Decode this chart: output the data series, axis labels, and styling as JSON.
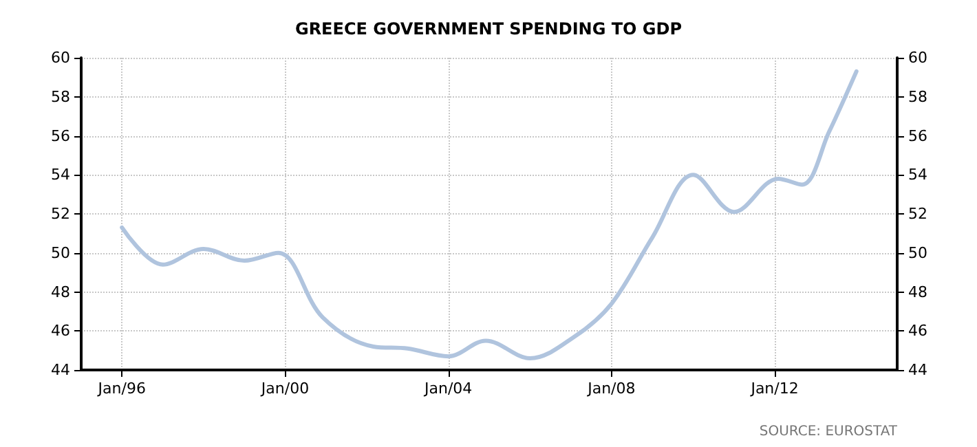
{
  "chart_data": {
    "type": "line",
    "title": "GREECE GOVERNMENT SPENDING TO GDP",
    "x": [
      "1996-01",
      "1997-01",
      "1998-01",
      "1999-01",
      "1999-11",
      "2000-12",
      "2002-03",
      "2003-01",
      "2004-01",
      "2004-12",
      "2006-01",
      "2007-02",
      "2008-01",
      "2009-01",
      "2010-01",
      "2011-01",
      "2012-02",
      "2012-09",
      "2013-05",
      "2014-01"
    ],
    "series": [
      {
        "color": "#b0c4de",
        "values": [
          51.3,
          49.4,
          50.2,
          49.6,
          50.0,
          46.7,
          45.2,
          45.1,
          44.7,
          45.5,
          44.6,
          45.7,
          47.4,
          50.8,
          54.0,
          52.1,
          53.8,
          53.5,
          56.2,
          59.3
        ]
      }
    ],
    "xlim": [
      "1995-01",
      "2015-01"
    ],
    "xticks": [
      {
        "value": "1996-01",
        "label": "Jan/96"
      },
      {
        "value": "2000-01",
        "label": "Jan/00"
      },
      {
        "value": "2004-01",
        "label": "Jan/04"
      },
      {
        "value": "2008-01",
        "label": "Jan/08"
      },
      {
        "value": "2012-01",
        "label": "Jan/12"
      }
    ],
    "ylim": [
      44,
      60
    ],
    "yticks": [
      44,
      46,
      48,
      50,
      52,
      54,
      56,
      58,
      60
    ],
    "y2lim": [
      44,
      60
    ],
    "y2ticks": [
      44,
      46,
      48,
      50,
      52,
      54,
      56,
      58,
      60
    ],
    "grid": true,
    "marker": "none",
    "line_style": "solid",
    "annotations": [
      "SOURCE: EUROSTAT"
    ]
  }
}
